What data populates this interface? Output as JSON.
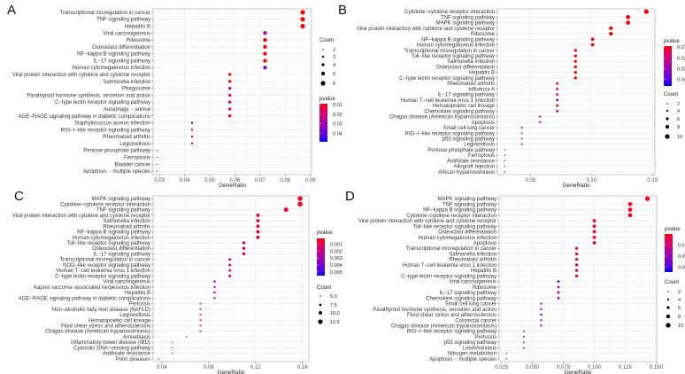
{
  "chart_data": [
    {
      "type": "scatter",
      "panel": "A",
      "xlabel": "GeneRatio",
      "xlim": [
        0.0275,
        0.0905
      ],
      "xticks": [
        0.03,
        0.04,
        0.05,
        0.06,
        0.07,
        0.08,
        0.09
      ],
      "xtick_labels": [
        "0.03",
        "0.04",
        "0.05",
        "0.06",
        "0.07",
        "0.08",
        "0.09"
      ],
      "color_legend": {
        "title": "pvalue",
        "ticks": [
          0.01,
          0.02,
          0.03,
          0.04
        ],
        "tick_labels": [
          "0.01",
          "0.02",
          "0.03",
          "0.04"
        ],
        "range": [
          0.009,
          0.049
        ],
        "low_color": "#FF0000",
        "high_color": "#0000FF"
      },
      "size_legend": {
        "title": "Count",
        "values": [
          2,
          3,
          4,
          5,
          6
        ],
        "labels": [
          "2",
          "3",
          "4",
          "5",
          "6"
        ]
      },
      "terms": [
        "Transcriptional misregulation in cancer",
        "TNF signaling pathway",
        "Hepatitis B",
        "Viral carcinogenesis",
        "Ribosome",
        "Osteoclast differentiation",
        "NF−kappa B signaling pathway",
        "IL−17 signaling pathway",
        "Human cytomegalovirus infection",
        "Viral protein interaction with cytokine and cytokine receptor",
        "Salmonella infection",
        "Phagosome",
        "Parathyroid hormone synthesis, secretion and action",
        "C−type lectin receptor signaling pathway",
        "Autophagy − animal",
        "AGE−RAGE signaling pathway in diabetic complications",
        "Staphylococcus aureus infection",
        "RIG−I−like receptor signaling pathway",
        "Rheumatoid arthritis",
        "Legionellosis",
        "Pentose phosphate pathway",
        "Ferroptosis",
        "Bladder cancer",
        "Apoptosis − multiple species"
      ],
      "gene_ratio": [
        0.087,
        0.087,
        0.087,
        0.072,
        0.072,
        0.072,
        0.072,
        0.072,
        0.072,
        0.058,
        0.058,
        0.058,
        0.058,
        0.058,
        0.058,
        0.058,
        0.043,
        0.043,
        0.043,
        0.043,
        0.029,
        0.029,
        0.029,
        0.029
      ],
      "count": [
        6,
        6,
        6,
        5,
        5,
        5,
        5,
        5,
        5,
        4,
        4,
        4,
        4,
        4,
        4,
        4,
        3,
        3,
        3,
        3,
        2,
        2,
        2,
        2
      ],
      "pvalue": [
        0.005,
        0.005,
        0.006,
        0.028,
        0.009,
        0.008,
        0.008,
        0.009,
        0.036,
        0.008,
        0.008,
        0.032,
        0.012,
        0.014,
        0.018,
        0.008,
        0.045,
        0.02,
        0.038,
        0.012,
        0.02,
        0.035,
        0.04,
        0.025
      ]
    },
    {
      "type": "scatter",
      "panel": "B",
      "xlabel": "GeneRatio",
      "xlim": [
        0.023,
        0.152
      ],
      "xticks": [
        0.05,
        0.1,
        0.15
      ],
      "xtick_labels": [
        "0.05",
        "0.10",
        "0.15"
      ],
      "color_legend": {
        "title": "pvalue",
        "ticks": [
          0.01,
          0.02,
          0.03,
          0.04
        ],
        "tick_labels": [
          "0.01",
          "0.02",
          "0.03",
          "0.04"
        ],
        "range": [
          0.009,
          0.046
        ],
        "low_color": "#FF0000",
        "high_color": "#0000FF"
      },
      "size_legend": {
        "title": "Count",
        "values": [
          2,
          4,
          6,
          8,
          10
        ],
        "labels": [
          "2",
          "4",
          "6",
          "8",
          "10"
        ]
      },
      "terms": [
        "Cytokine−cytokine receptor interaction",
        "TNF signaling pathway",
        "MAPK signaling pathway",
        "Viral protein interaction with cytokine and cytokine receptor",
        "Ribosome",
        "NF−kappa B signaling pathway",
        "Human cytomegalovirus infection",
        "Transcriptional misregulation in cancer",
        "Toll−like receptor signaling pathway",
        "Salmonella infection",
        "Osteoclast differentiation",
        "Hepatitis B",
        "C−type lectin receptor signaling pathway",
        "Rheumatoid arthritis",
        "Influenza A",
        "IL−17 signaling pathway",
        "Human T−cell leukemia virus 1 infection",
        "Hematopoietic cell lineage",
        "Chemokine signaling pathway",
        "Chagas disease (American trypanosomiasis)",
        "Apoptosis",
        "Small cell lung cancer",
        "RIG−I−like receptor signaling pathway",
        "p53 signaling pathway",
        "Legionellosis",
        "Pentose phosphate pathway",
        "Ferroptosis",
        "Antifolate resistance",
        "Allograft rejection",
        "African trypanosomiasis"
      ],
      "gene_ratio": [
        0.145,
        0.13,
        0.13,
        0.116,
        0.116,
        0.101,
        0.101,
        0.087,
        0.087,
        0.087,
        0.087,
        0.087,
        0.087,
        0.072,
        0.072,
        0.072,
        0.072,
        0.072,
        0.072,
        0.058,
        0.058,
        0.043,
        0.043,
        0.043,
        0.043,
        0.029,
        0.029,
        0.029,
        0.029,
        0.029
      ],
      "count": [
        10,
        9,
        9,
        8,
        8,
        7,
        7,
        6,
        6,
        6,
        6,
        6,
        6,
        5,
        5,
        5,
        5,
        5,
        5,
        4,
        4,
        3,
        3,
        3,
        3,
        2,
        2,
        2,
        2,
        2
      ],
      "pvalue": [
        0.002,
        0.003,
        0.005,
        0.003,
        0.004,
        0.004,
        0.006,
        0.006,
        0.005,
        0.006,
        0.005,
        0.007,
        0.006,
        0.01,
        0.015,
        0.012,
        0.035,
        0.01,
        0.025,
        0.018,
        0.028,
        0.045,
        0.02,
        0.02,
        0.015,
        0.025,
        0.042,
        0.03,
        0.035,
        0.04
      ]
    },
    {
      "type": "scatter",
      "panel": "C",
      "xlabel": "GeneRatio",
      "xlim": [
        0.0325,
        0.1655
      ],
      "xticks": [
        0.04,
        0.08,
        0.12,
        0.16
      ],
      "xtick_labels": [
        "0.04",
        "0.08",
        "0.12",
        "0.16"
      ],
      "color_legend": {
        "title": "pvalue",
        "ticks": [
          0.001,
          0.002,
          0.003,
          0.004,
          0.005
        ],
        "tick_labels": [
          "0.001",
          "0.002",
          "0.003",
          "0.004",
          "0.005"
        ],
        "range": [
          0.0002,
          0.0055
        ],
        "low_color": "#FF0000",
        "high_color": "#0000FF"
      },
      "size_legend": {
        "title": "Count",
        "values": [
          5,
          7.5,
          10,
          12.5
        ],
        "labels": [
          "5.0",
          "7.5",
          "10.0",
          "12.5"
        ]
      },
      "terms": [
        "MAPK signaling pathway",
        "Cytokine−cytokine receptor interaction",
        "TNF signaling pathway",
        "Viral protein interaction with cytokine and cytokine receptor",
        "Salmonella infection",
        "Rheumatoid arthritis",
        "NF−kappa B signaling pathway",
        "Human cytomegalovirus infection",
        "Toll−like receptor signaling pathway",
        "Osteoclast differentiation",
        "IL−17 signaling pathway",
        "Transcriptional misregulation in cancer",
        "NOD−like receptor signaling pathway",
        "Human T−cell leukemia virus 1 infection",
        "C−type lectin receptor signaling pathway",
        "Viral carcinogenesis",
        "Kaposi sarcoma−associated herpesvirus infection",
        "Hepatitis B",
        "AGE−RAGE signaling pathway in diabetic complications",
        "Pertussis",
        "Non−alcoholic fatty liver disease (NAFLD)",
        "Legionellosis",
        "Hematopoietic cell lineage",
        "Fluid shear stress and atherosclerosis",
        "Chagas disease (American trypanosomiasis)",
        "Amoebiasis",
        "Inflammatory bowel disease (IBD)",
        "Cytosolic DNA−sensing pathway",
        "Antifolate resistance",
        "Prion diseases"
      ],
      "gene_ratio": [
        0.158,
        0.158,
        0.146,
        0.122,
        0.122,
        0.122,
        0.122,
        0.122,
        0.11,
        0.11,
        0.11,
        0.098,
        0.098,
        0.098,
        0.098,
        0.085,
        0.085,
        0.085,
        0.085,
        0.073,
        0.073,
        0.073,
        0.073,
        0.073,
        0.073,
        0.061,
        0.049,
        0.049,
        0.049,
        0.037
      ],
      "count": [
        13,
        13,
        12,
        10,
        10,
        10,
        10,
        10,
        9,
        9,
        9,
        8,
        8,
        8,
        8,
        7,
        7,
        7,
        7,
        6,
        6,
        6,
        6,
        6,
        6,
        5,
        4,
        4,
        4,
        3
      ],
      "pvalue": [
        0.0003,
        0.0003,
        0.0005,
        0.0006,
        0.0008,
        0.0008,
        0.0008,
        0.001,
        0.001,
        0.001,
        0.001,
        0.001,
        0.0012,
        0.0014,
        0.0012,
        0.0038,
        0.0033,
        0.002,
        0.0018,
        0.0018,
        0.0038,
        0.0018,
        0.002,
        0.003,
        0.0018,
        0.0035,
        0.004,
        0.004,
        0.0018,
        0.0052
      ]
    },
    {
      "type": "scatter",
      "panel": "D",
      "xlabel": "GeneRatio",
      "xlim": [
        0.023,
        0.1505
      ],
      "xticks": [
        0.025,
        0.05,
        0.075,
        0.1,
        0.125,
        0.15
      ],
      "xtick_labels": [
        "0.025",
        "0.050",
        "0.075",
        "0.100",
        "0.125",
        "0.150"
      ],
      "color_legend": {
        "title": "pvalue",
        "ticks": [
          0.01,
          0.02,
          0.03
        ],
        "tick_labels": [
          "0.01",
          "0.02",
          "0.03"
        ],
        "range": [
          0.0,
          0.0345
        ],
        "low_color": "#FF0000",
        "high_color": "#0000FF"
      },
      "size_legend": {
        "title": "Count",
        "values": [
          2,
          4,
          6,
          8,
          10
        ],
        "labels": [
          "2",
          "4",
          "6",
          "8",
          "10"
        ]
      },
      "terms": [
        "MAPK signaling pathway",
        "TNF signaling pathway",
        "NF−kappa B signaling pathway",
        "Cytokine−cytokine receptor interaction",
        "Viral protein interaction with cytokine and cytokine receptor",
        "Toll−like receptor signaling pathway",
        "Osteoclast differentiation",
        "Human cytomegalovirus infection",
        "Apoptosis",
        "Transcriptional misregulation in cancer",
        "Salmonella infection",
        "Rheumatoid arthritis",
        "Human T−cell leukemia virus 1 infection",
        "Hepatitis B",
        "C−type lectin receptor signaling pathway",
        "Viral carcinogenesis",
        "Ribosome",
        "IL−17 signaling pathway",
        "Chemokine signaling pathway",
        "Small cell lung cancer",
        "Parathyroid hormone synthesis, secretion and action",
        "Fluid shear stress and atherosclerosis",
        "Colorectal cancer",
        "Chagas disease (American trypanosomiasis)",
        "RIG−I−like receptor signaling pathway",
        "Pertussis",
        "p53 signaling pathway",
        "Leishmaniasis",
        "Nitrogen metabolism",
        "Apoptosis − multiple species"
      ],
      "gene_ratio": [
        0.143,
        0.129,
        0.129,
        0.129,
        0.1,
        0.1,
        0.1,
        0.1,
        0.1,
        0.0857,
        0.0857,
        0.0857,
        0.0857,
        0.0857,
        0.0857,
        0.071,
        0.071,
        0.071,
        0.071,
        0.057,
        0.057,
        0.057,
        0.057,
        0.057,
        0.043,
        0.043,
        0.043,
        0.043,
        0.029,
        0.029
      ],
      "count": [
        10,
        9,
        9,
        9,
        7,
        7,
        7,
        7,
        7,
        6,
        6,
        6,
        6,
        6,
        6,
        5,
        5,
        5,
        5,
        4,
        4,
        4,
        4,
        4,
        3,
        3,
        3,
        3,
        2,
        2
      ],
      "pvalue": [
        0.001,
        0.001,
        0.001,
        0.001,
        0.002,
        0.002,
        0.002,
        0.002,
        0.002,
        0.006,
        0.006,
        0.006,
        0.012,
        0.006,
        0.006,
        0.03,
        0.012,
        0.01,
        0.022,
        0.012,
        0.014,
        0.032,
        0.012,
        0.014,
        0.022,
        0.024,
        0.022,
        0.024,
        0.012,
        0.03
      ]
    }
  ]
}
